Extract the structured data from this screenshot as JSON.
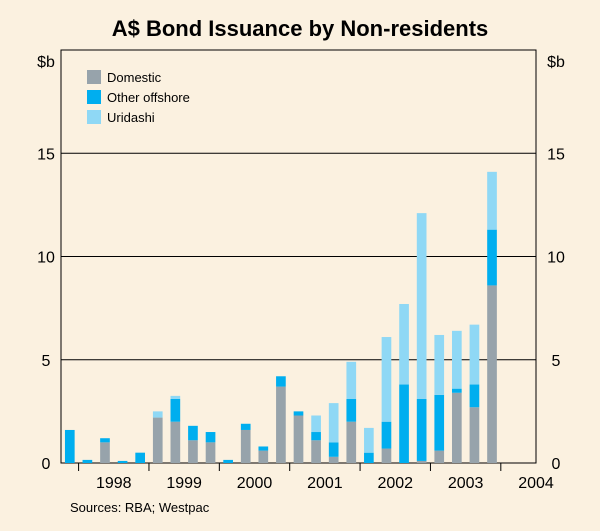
{
  "chart_data": {
    "type": "bar",
    "stacked": true,
    "title": "A$ Bond Issuance by Non-residents",
    "ylabel_left": "$b",
    "ylabel_right": "$b",
    "ylim": [
      0,
      20
    ],
    "yticks": [
      0,
      5,
      10,
      15
    ],
    "years": [
      "1998",
      "1999",
      "2000",
      "2001",
      "2002",
      "2003",
      "2004"
    ],
    "quarters": [
      "1997 Q4",
      "1998 Q1",
      "1998 Q2",
      "1998 Q3",
      "1998 Q4",
      "1999 Q1",
      "1999 Q2",
      "1999 Q3",
      "1999 Q4",
      "2000 Q1",
      "2000 Q2",
      "2000 Q3",
      "2000 Q4",
      "2001 Q1",
      "2001 Q2",
      "2001 Q3",
      "2001 Q4",
      "2002 Q1",
      "2002 Q2",
      "2002 Q3",
      "2002 Q4",
      "2003 Q1",
      "2003 Q2",
      "2003 Q3",
      "2003 Q4",
      "2004 Q1",
      "2004 Q2"
    ],
    "series": [
      {
        "name": "Domestic",
        "color": "#97a3ab",
        "values": [
          0,
          0,
          1.0,
          0,
          0,
          2.2,
          2.0,
          1.1,
          1.0,
          0,
          1.6,
          0.6,
          3.7,
          2.3,
          1.1,
          0.3,
          2.0,
          0,
          0.7,
          0,
          0.1,
          0.6,
          3.4,
          2.7,
          8.6,
          0,
          0
        ]
      },
      {
        "name": "Other offshore",
        "color": "#00aeef",
        "values": [
          1.6,
          0.15,
          0.2,
          0.1,
          0.5,
          0,
          1.1,
          0.7,
          0.5,
          0.15,
          0.3,
          0.2,
          0.5,
          0.2,
          0.4,
          0.7,
          1.1,
          0.5,
          1.3,
          3.8,
          3.0,
          2.7,
          0.2,
          1.1,
          2.7,
          0,
          0
        ]
      },
      {
        "name": "Uridashi",
        "color": "#8fd8f5",
        "values": [
          0,
          0,
          0,
          0,
          0,
          0.3,
          0.15,
          0,
          0,
          0,
          0,
          0,
          0,
          0,
          0.8,
          1.9,
          1.8,
          1.2,
          4.1,
          3.9,
          9.0,
          2.9,
          2.8,
          2.9,
          2.8,
          0,
          0
        ]
      }
    ],
    "legend_position": "top-left",
    "source": "Sources: RBA; Westpac"
  }
}
